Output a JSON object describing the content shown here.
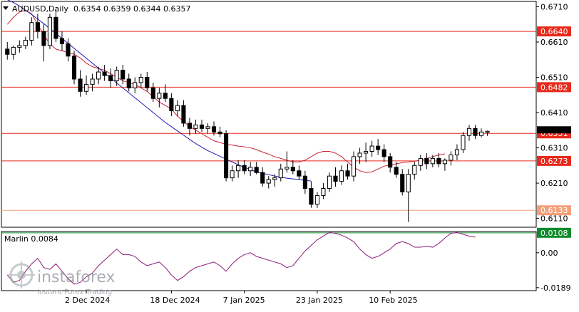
{
  "header": {
    "symbol": "AUDUSD,Daily",
    "ohlc": "0.6354 0.6359 0.6344 0.6357"
  },
  "indicator": {
    "label": "Marlin 0.0084"
  },
  "watermark": {
    "brand": "instaforex",
    "tagline": "Instant Forex Trading"
  },
  "colors": {
    "background": "#ffffff",
    "candle": "#000000",
    "level_line": "#e8291c",
    "support_line": "#f3a07a",
    "ma_fast": "#cc2233",
    "ma_slow": "#1c1cb4",
    "oscillator": "#8b1a7a",
    "osc_zero_box": "#0f8a2a",
    "price_tag_red": "#e8291c",
    "price_tag_orange": "#f3a07a",
    "price_tag_green": "#0f8a2a",
    "current_price_tag": "#000000"
  },
  "chart_data": {
    "type": "candlestick",
    "price_axis": {
      "ticks": [
        "0.6710",
        "0.6610",
        "0.6510",
        "0.6410",
        "0.6310",
        "0.6210",
        "0.6110"
      ],
      "ylim": [
        0.6085,
        0.6725
      ]
    },
    "osc_axis": {
      "ticks": [
        "0.00",
        "-0.0189"
      ],
      "ylim": [
        -0.0205,
        0.0115
      ]
    },
    "x_labels": [
      "2 Dec 2024",
      "18 Dec 2024",
      "7 Jan 2025",
      "23 Jan 2025",
      "10 Feb 2025"
    ],
    "levels": [
      {
        "value": 0.664,
        "label": "0.6640",
        "kind": "resistance"
      },
      {
        "value": 0.6482,
        "label": "0.6482",
        "kind": "resistance"
      },
      {
        "value": 0.6351,
        "label": "0.6351",
        "kind": "resistance"
      },
      {
        "value": 0.6273,
        "label": "0.6273",
        "kind": "resistance"
      },
      {
        "value": 0.6133,
        "label": "0.6133",
        "kind": "support"
      }
    ],
    "current_price": {
      "value": 0.6357,
      "label": "0.6357"
    },
    "osc_level": {
      "value": 0.0108,
      "label": "0.0108"
    },
    "candles": [
      [
        0.659,
        0.661,
        0.656,
        0.6575
      ],
      [
        0.6575,
        0.66,
        0.656,
        0.6595
      ],
      [
        0.6595,
        0.6615,
        0.658,
        0.66
      ],
      [
        0.66,
        0.6625,
        0.659,
        0.6615
      ],
      [
        0.6615,
        0.668,
        0.66,
        0.6665
      ],
      [
        0.6665,
        0.669,
        0.662,
        0.664
      ],
      [
        0.664,
        0.666,
        0.6555,
        0.66
      ],
      [
        0.66,
        0.669,
        0.659,
        0.668
      ],
      [
        0.668,
        0.67,
        0.661,
        0.662
      ],
      [
        0.662,
        0.664,
        0.6585,
        0.6605
      ],
      [
        0.6605,
        0.662,
        0.6555,
        0.657
      ],
      [
        0.657,
        0.6585,
        0.649,
        0.6505
      ],
      [
        0.6505,
        0.653,
        0.6455,
        0.647
      ],
      [
        0.647,
        0.6515,
        0.646,
        0.649
      ],
      [
        0.649,
        0.652,
        0.647,
        0.6505
      ],
      [
        0.6505,
        0.654,
        0.649,
        0.6525
      ],
      [
        0.6525,
        0.6545,
        0.65,
        0.6515
      ],
      [
        0.6515,
        0.6535,
        0.648,
        0.65
      ],
      [
        0.65,
        0.654,
        0.6485,
        0.653
      ],
      [
        0.653,
        0.6545,
        0.649,
        0.6505
      ],
      [
        0.6505,
        0.652,
        0.647,
        0.648
      ],
      [
        0.648,
        0.651,
        0.6465,
        0.6495
      ],
      [
        0.6495,
        0.652,
        0.648,
        0.651
      ],
      [
        0.651,
        0.6525,
        0.647,
        0.648
      ],
      [
        0.648,
        0.6495,
        0.644,
        0.645
      ],
      [
        0.645,
        0.648,
        0.6425,
        0.6465
      ],
      [
        0.6465,
        0.649,
        0.644,
        0.645
      ],
      [
        0.645,
        0.6465,
        0.64,
        0.6415
      ],
      [
        0.6415,
        0.6445,
        0.64,
        0.643
      ],
      [
        0.643,
        0.6445,
        0.637,
        0.638
      ],
      [
        0.638,
        0.6395,
        0.6345,
        0.6365
      ],
      [
        0.6365,
        0.639,
        0.635,
        0.6375
      ],
      [
        0.6375,
        0.639,
        0.6355,
        0.6365
      ],
      [
        0.6365,
        0.638,
        0.635,
        0.637
      ],
      [
        0.637,
        0.6385,
        0.6345,
        0.6355
      ],
      [
        0.6355,
        0.637,
        0.634,
        0.635
      ],
      [
        0.635,
        0.636,
        0.6215,
        0.6225
      ],
      [
        0.6225,
        0.626,
        0.6215,
        0.6245
      ],
      [
        0.6245,
        0.6275,
        0.6225,
        0.626
      ],
      [
        0.626,
        0.6275,
        0.6235,
        0.6245
      ],
      [
        0.6245,
        0.627,
        0.623,
        0.6255
      ],
      [
        0.6255,
        0.627,
        0.6235,
        0.624
      ],
      [
        0.624,
        0.6255,
        0.62,
        0.621
      ],
      [
        0.621,
        0.623,
        0.6195,
        0.622
      ],
      [
        0.622,
        0.6235,
        0.62,
        0.6225
      ],
      [
        0.6225,
        0.6265,
        0.6215,
        0.625
      ],
      [
        0.625,
        0.63,
        0.624,
        0.6255
      ],
      [
        0.6255,
        0.6275,
        0.6235,
        0.6245
      ],
      [
        0.6245,
        0.626,
        0.622,
        0.623
      ],
      [
        0.623,
        0.6245,
        0.618,
        0.6195
      ],
      [
        0.6195,
        0.6215,
        0.614,
        0.615
      ],
      [
        0.615,
        0.6185,
        0.614,
        0.6175
      ],
      [
        0.6175,
        0.621,
        0.6165,
        0.6195
      ],
      [
        0.6195,
        0.624,
        0.6185,
        0.623
      ],
      [
        0.623,
        0.6255,
        0.62,
        0.6215
      ],
      [
        0.6215,
        0.626,
        0.6205,
        0.6245
      ],
      [
        0.6245,
        0.6265,
        0.622,
        0.623
      ],
      [
        0.623,
        0.63,
        0.6215,
        0.6285
      ],
      [
        0.6285,
        0.631,
        0.6265,
        0.6295
      ],
      [
        0.6295,
        0.6325,
        0.627,
        0.63
      ],
      [
        0.63,
        0.633,
        0.6285,
        0.6315
      ],
      [
        0.6315,
        0.6335,
        0.629,
        0.6305
      ],
      [
        0.6305,
        0.632,
        0.627,
        0.6285
      ],
      [
        0.6285,
        0.6295,
        0.624,
        0.6255
      ],
      [
        0.6255,
        0.627,
        0.6225,
        0.6235
      ],
      [
        0.6235,
        0.625,
        0.6175,
        0.6185
      ],
      [
        0.6185,
        0.625,
        0.61,
        0.6235
      ],
      [
        0.6235,
        0.627,
        0.622,
        0.626
      ],
      [
        0.626,
        0.629,
        0.6245,
        0.628
      ],
      [
        0.628,
        0.6295,
        0.625,
        0.6265
      ],
      [
        0.6265,
        0.629,
        0.6255,
        0.628
      ],
      [
        0.628,
        0.6295,
        0.6255,
        0.6265
      ],
      [
        0.6265,
        0.628,
        0.6245,
        0.6275
      ],
      [
        0.6275,
        0.63,
        0.626,
        0.629
      ],
      [
        0.629,
        0.632,
        0.6275,
        0.6305
      ],
      [
        0.6305,
        0.6355,
        0.6295,
        0.6345
      ],
      [
        0.6345,
        0.6375,
        0.633,
        0.6365
      ],
      [
        0.6365,
        0.6375,
        0.6335,
        0.6345
      ],
      [
        0.6345,
        0.6365,
        0.634,
        0.6355
      ],
      [
        0.6354,
        0.6359,
        0.6344,
        0.6357
      ]
    ],
    "ma_fast": [
      0.666,
      0.668,
      0.6695,
      0.67,
      0.669,
      0.666,
      0.663,
      0.6605,
      0.659,
      0.6585,
      0.658,
      0.6575,
      0.6565,
      0.655,
      0.654,
      0.6535,
      0.653,
      0.652,
      0.651,
      0.65,
      0.6495,
      0.649,
      0.648,
      0.647,
      0.6455,
      0.644,
      0.643,
      0.642,
      0.64,
      0.6385,
      0.637,
      0.636,
      0.635,
      0.634,
      0.633,
      0.6325,
      0.632,
      0.6318,
      0.6315,
      0.6313,
      0.631,
      0.6305,
      0.6298,
      0.6292,
      0.6285,
      0.628,
      0.6275,
      0.627,
      0.627,
      0.6275,
      0.6285,
      0.6295,
      0.63,
      0.63,
      0.6295,
      0.6285,
      0.627,
      0.6255,
      0.6245,
      0.624,
      0.6242,
      0.625,
      0.6258,
      0.6262,
      0.6265,
      0.6268,
      0.627,
      0.6272,
      0.6275,
      0.628,
      0.6285,
      0.629,
      0.6293
    ],
    "ma_slow": [
      0.673,
      0.6722,
      0.6712,
      0.67,
      0.6688,
      0.6675,
      0.6662,
      0.6648,
      0.6634,
      0.662,
      0.6606,
      0.6592,
      0.6578,
      0.6564,
      0.655,
      0.6536,
      0.6522,
      0.6508,
      0.6494,
      0.648,
      0.6466,
      0.6452,
      0.6438,
      0.6424,
      0.641,
      0.6396,
      0.6382,
      0.637,
      0.6358,
      0.6346,
      0.6334,
      0.6322,
      0.6312,
      0.6302,
      0.6294,
      0.6286,
      0.6278,
      0.627,
      0.6262,
      0.6255,
      0.6248,
      0.6242,
      0.6238,
      0.6234,
      0.623,
      0.6227,
      0.6224,
      0.6222,
      0.622,
      0.6218,
      0.6216
    ],
    "oscillator": [
      -0.012,
      -0.016,
      -0.015,
      -0.01,
      -0.006,
      -0.003,
      -0.008,
      -0.009,
      -0.006,
      -0.01,
      -0.014,
      -0.017,
      -0.016,
      -0.013,
      -0.011,
      -0.007,
      -0.004,
      -0.001,
      0.002,
      -0.001,
      -0.001,
      -0.002,
      -0.005,
      -0.007,
      -0.006,
      -0.005,
      -0.008,
      -0.012,
      -0.015,
      -0.013,
      -0.01,
      -0.008,
      -0.007,
      -0.006,
      -0.005,
      -0.007,
      -0.01,
      -0.006,
      -0.003,
      -0.001,
      0.0,
      -0.002,
      -0.003,
      -0.004,
      -0.005,
      -0.006,
      -0.008,
      -0.007,
      -0.003,
      0.001,
      0.004,
      0.007,
      0.009,
      0.011,
      0.0105,
      0.0095,
      0.008,
      0.006,
      0.002,
      -0.001,
      -0.003,
      -0.002,
      0.0,
      0.002,
      0.005,
      0.006,
      0.005,
      0.003,
      0.003,
      0.0035,
      0.003,
      0.005,
      0.008,
      0.0105,
      0.011,
      0.01,
      0.009,
      0.0084
    ]
  }
}
